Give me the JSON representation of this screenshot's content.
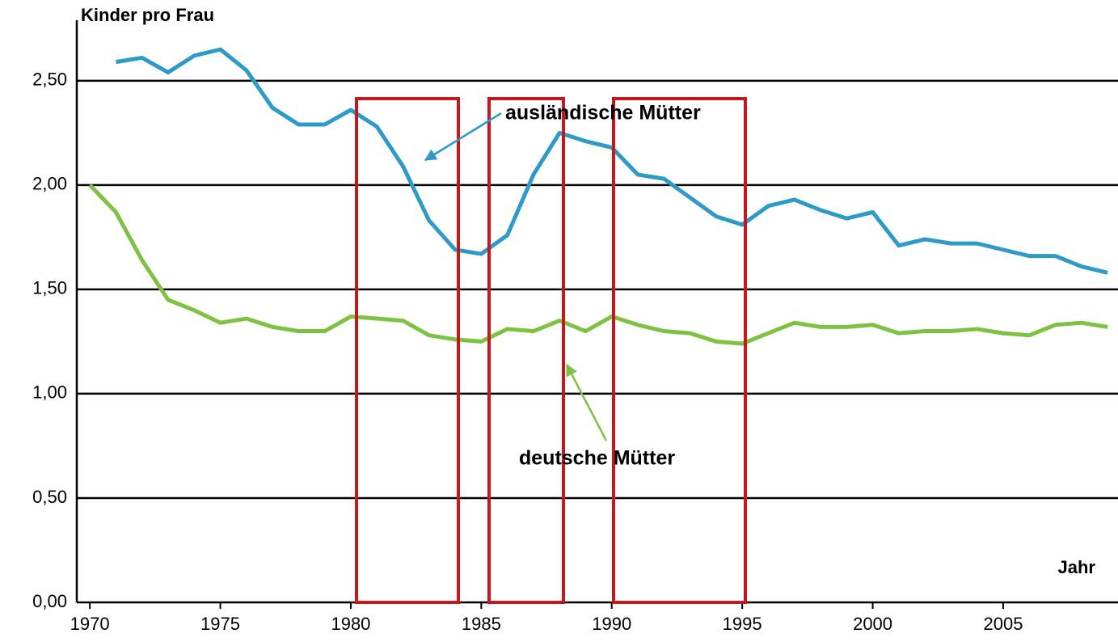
{
  "chart_data": {
    "type": "line",
    "y_label": "Kinder pro Frau",
    "x_label": "Jahr",
    "x": [
      1970,
      1971,
      1972,
      1973,
      1974,
      1975,
      1976,
      1977,
      1978,
      1979,
      1980,
      1981,
      1982,
      1983,
      1984,
      1985,
      1986,
      1987,
      1988,
      1989,
      1990,
      1991,
      1992,
      1993,
      1994,
      1995,
      1996,
      1997,
      1998,
      1999,
      2000,
      2001,
      2002,
      2003,
      2004,
      2005,
      2006,
      2007,
      2008,
      2009
    ],
    "series": [
      {
        "name": "ausländische Mütter",
        "color": "#2e9ac8",
        "values": [
          null,
          2.59,
          2.61,
          2.54,
          2.62,
          2.65,
          2.55,
          2.37,
          2.29,
          2.29,
          2.36,
          2.28,
          2.09,
          1.83,
          1.69,
          1.67,
          1.76,
          2.05,
          2.25,
          2.21,
          2.18,
          2.05,
          2.03,
          1.94,
          1.85,
          1.81,
          1.9,
          1.93,
          1.88,
          1.84,
          1.87,
          1.71,
          1.74,
          1.72,
          1.72,
          1.69,
          1.66,
          1.66,
          1.61,
          1.58
        ]
      },
      {
        "name": "deutsche Mütter",
        "color": "#7dc242",
        "values": [
          2.0,
          1.87,
          1.64,
          1.45,
          1.4,
          1.34,
          1.36,
          1.32,
          1.3,
          1.3,
          1.37,
          1.36,
          1.35,
          1.28,
          1.26,
          1.25,
          1.31,
          1.3,
          1.35,
          1.3,
          1.37,
          1.33,
          1.3,
          1.29,
          1.25,
          1.24,
          1.29,
          1.34,
          1.32,
          1.32,
          1.33,
          1.29,
          1.3,
          1.3,
          1.31,
          1.29,
          1.28,
          1.33,
          1.34,
          1.32
        ]
      }
    ],
    "xlim": [
      1969.5,
      2009.4
    ],
    "xticks": [
      1970,
      1975,
      1980,
      1985,
      1990,
      1995,
      2000,
      2005
    ],
    "ylim": [
      0,
      2.79
    ],
    "yticks": [
      {
        "value": 0,
        "label": "0,00"
      },
      {
        "value": 0.5,
        "label": "0,50"
      },
      {
        "value": 1,
        "label": "1,00"
      },
      {
        "value": 1.5,
        "label": "1,50"
      },
      {
        "value": 2,
        "label": "2,00"
      },
      {
        "value": 2.5,
        "label": "2,50"
      }
    ],
    "grid": true
  }
}
